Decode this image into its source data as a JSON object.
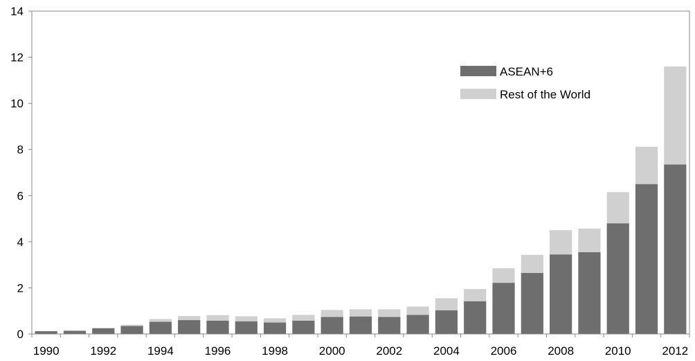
{
  "chart_data": {
    "type": "bar",
    "stacked": true,
    "x": [
      1990,
      1991,
      1992,
      1993,
      1994,
      1995,
      1996,
      1997,
      1998,
      1999,
      2000,
      2001,
      2002,
      2003,
      2004,
      2005,
      2006,
      2007,
      2008,
      2009,
      2010,
      2011,
      2012
    ],
    "x_tick_labels": [
      "1990",
      "1992",
      "1994",
      "1996",
      "1998",
      "2000",
      "2002",
      "2004",
      "2006",
      "2008",
      "2010",
      "2012"
    ],
    "series": [
      {
        "name": "ASEAN+6",
        "color": "#6e6e6e",
        "values": [
          0.12,
          0.14,
          0.25,
          0.35,
          0.53,
          0.6,
          0.58,
          0.55,
          0.5,
          0.58,
          0.74,
          0.76,
          0.74,
          0.83,
          1.03,
          1.42,
          2.22,
          2.65,
          3.45,
          3.55,
          4.8,
          6.5,
          7.35
        ]
      },
      {
        "name": "Rest of the World",
        "color": "#d0d0d0",
        "values": [
          0.0,
          0.0,
          0.0,
          0.05,
          0.12,
          0.18,
          0.24,
          0.22,
          0.18,
          0.25,
          0.3,
          0.31,
          0.33,
          0.36,
          0.52,
          0.53,
          0.63,
          0.78,
          1.05,
          1.02,
          1.35,
          1.62,
          4.25
        ]
      }
    ],
    "yticks": [
      0,
      2,
      4,
      6,
      8,
      10,
      12,
      14
    ],
    "ylim": [
      0,
      14
    ],
    "title": "",
    "xlabel": "",
    "ylabel": "",
    "grid": false,
    "legend_position": "top-right"
  }
}
